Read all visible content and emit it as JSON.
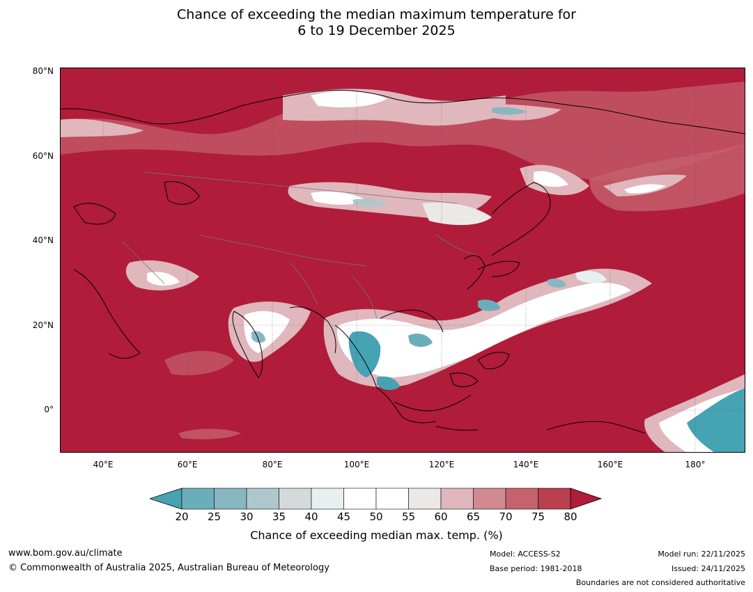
{
  "title": {
    "line1": "Chance of exceeding the median maximum temperature for",
    "line2": "6 to 19 December 2025"
  },
  "map": {
    "lat_labels": [
      "80°N",
      "60°N",
      "40°N",
      "20°N",
      "0°"
    ],
    "lon_labels": [
      "40°E",
      "60°E",
      "80°E",
      "100°E",
      "120°E",
      "140°E",
      "160°E",
      "180°"
    ],
    "lon_range": [
      30,
      192
    ],
    "lat_range": [
      -10,
      81
    ],
    "dominant_category_color": "#b01c39"
  },
  "colorbar": {
    "ticks": [
      "20",
      "25",
      "30",
      "35",
      "40",
      "45",
      "50",
      "55",
      "60",
      "65",
      "70",
      "75",
      "80"
    ],
    "colors": [
      "#45a3b3",
      "#6baebb",
      "#88b7c2",
      "#aec7cc",
      "#d4dadb",
      "#e8eff1",
      "#ffffff",
      "#ffffff",
      "#ece8e7",
      "#dfb7bd",
      "#d28a92",
      "#c6626d",
      "#bb404f",
      "#b01c39"
    ],
    "label": "Chance of exceeding median max. temp. (%)"
  },
  "footer": {
    "website": "www.bom.gov.au/climate",
    "copyright": "© Commonwealth of Australia 2025, Australian Bureau of Meteorology",
    "model": "Model: ACCESS-S2",
    "base_period": "Base period: 1981-2018",
    "model_run": "Model run: 22/11/2025",
    "issued": "Issued: 24/11/2025",
    "disclaimer": "Boundaries are not considered authoritative"
  }
}
